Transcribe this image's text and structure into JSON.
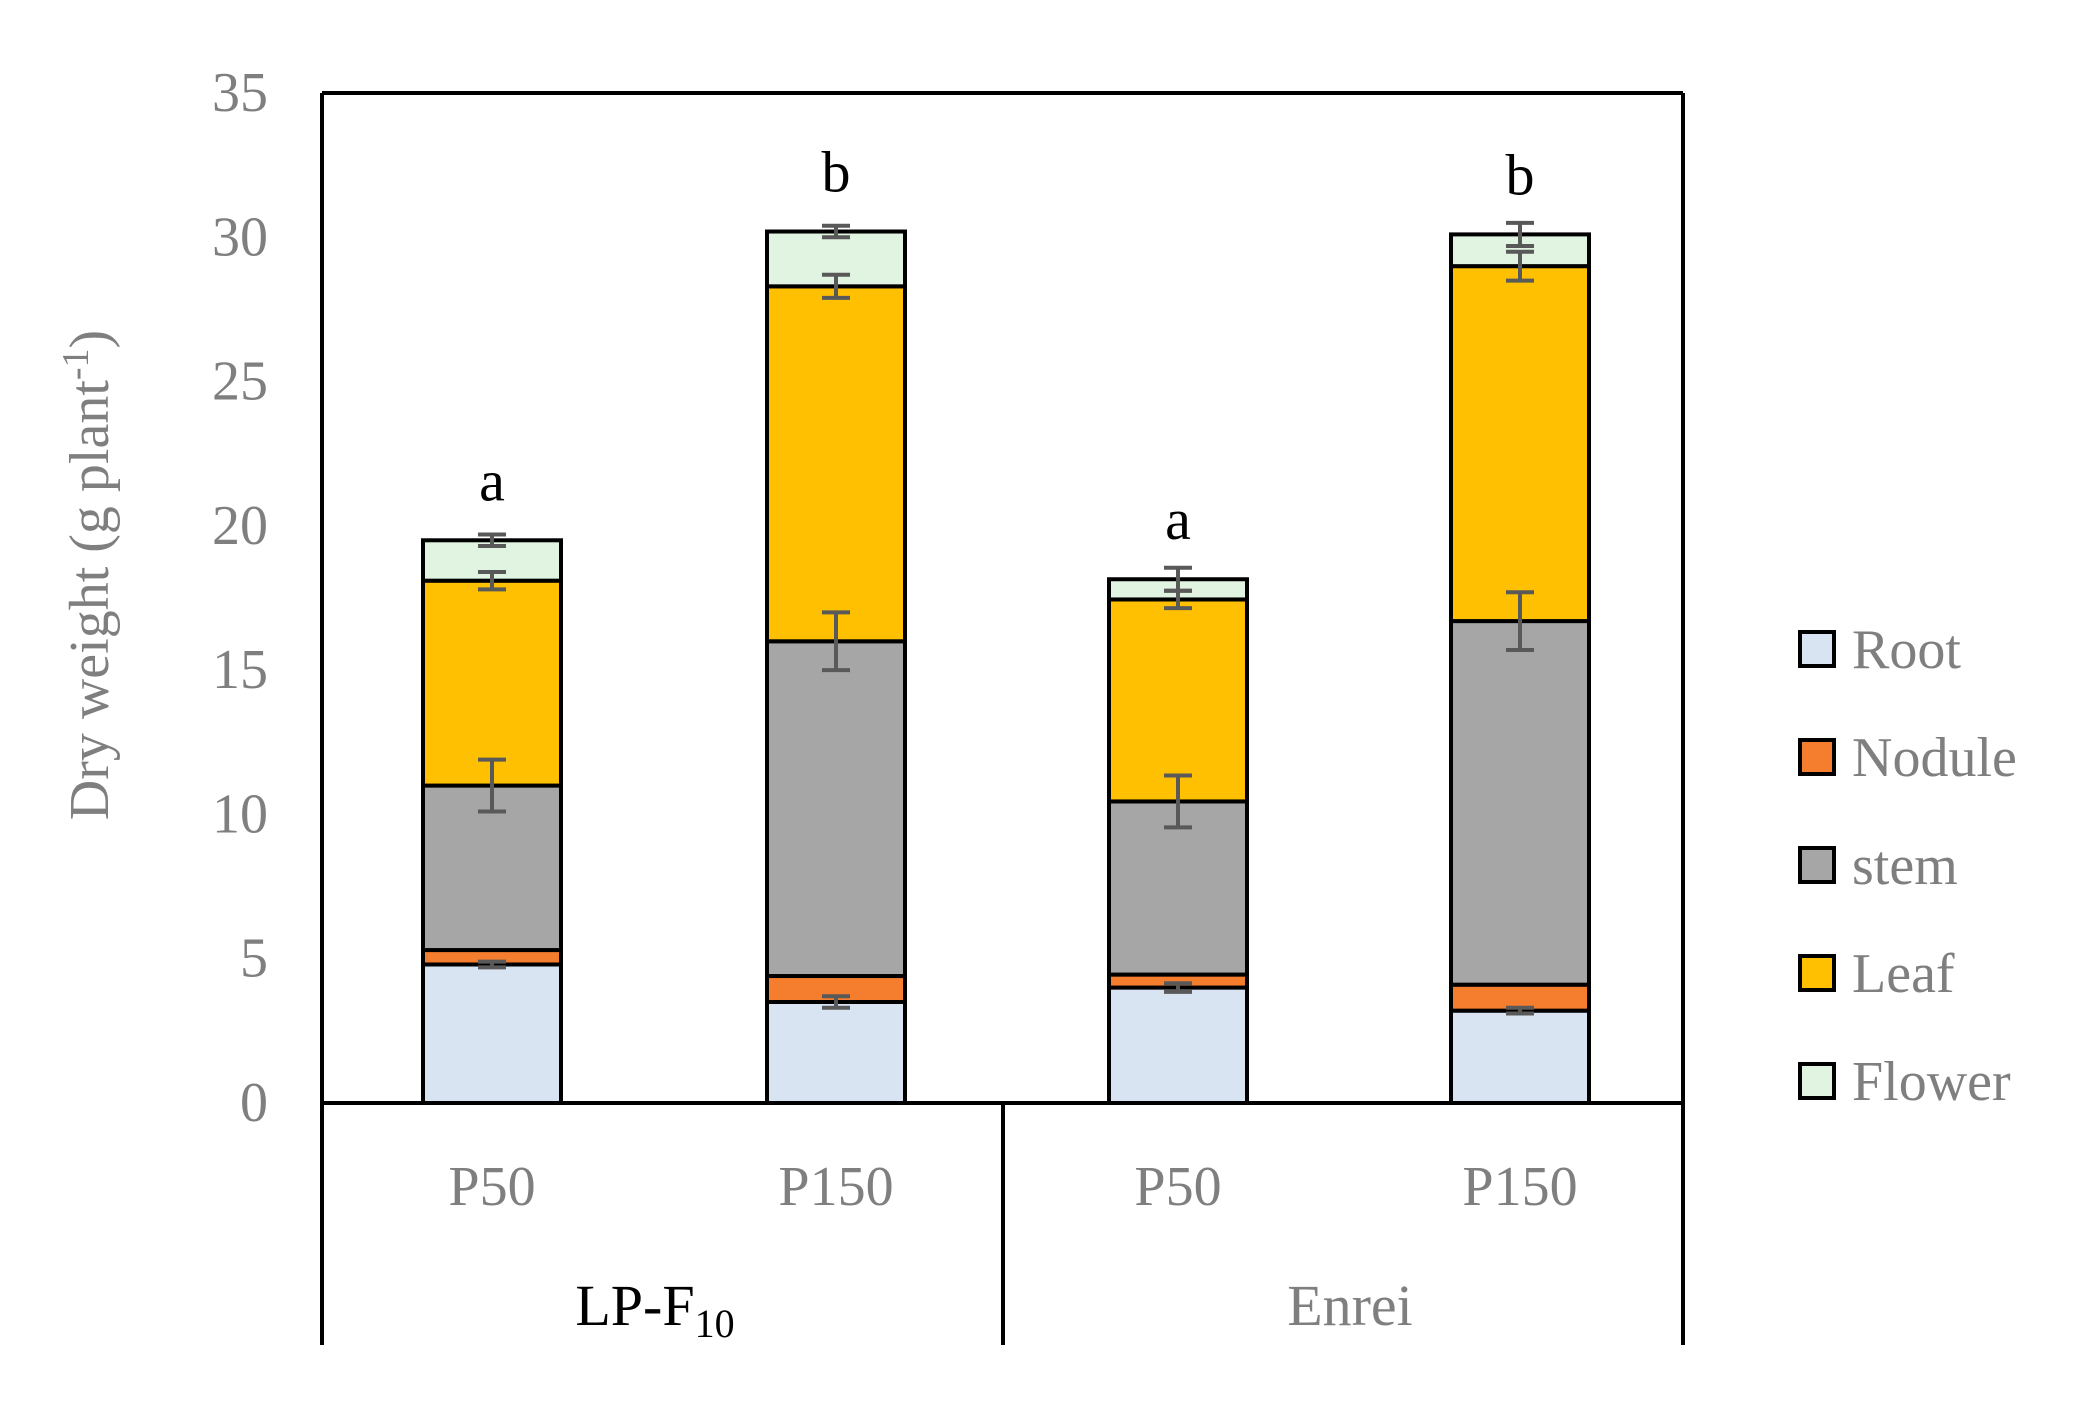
{
  "chart_data": {
    "type": "bar",
    "stacked": true,
    "ylabel": "Dry weight (g plant",
    "ylabel_sup": "-1",
    "ylabel_close": ")",
    "ylim": [
      0,
      35
    ],
    "yticks": [
      0,
      5,
      10,
      15,
      20,
      25,
      30,
      35
    ],
    "categories": [
      "P50",
      "P150",
      "P50",
      "P150"
    ],
    "groups": [
      {
        "label": "LP-F",
        "subscript": "10",
        "label_color": "#000000"
      },
      {
        "label": "Enrei",
        "subscript": "",
        "label_color": "#7f7f7f"
      }
    ],
    "series": [
      {
        "name": "Root",
        "color": "#d9e4f3",
        "values": [
          4.8,
          3.5,
          4.0,
          3.2
        ],
        "err": [
          0.1,
          0.2,
          0.15,
          0.1
        ]
      },
      {
        "name": "Nodule",
        "color": "#f47e2e",
        "values": [
          0.5,
          0.9,
          0.45,
          0.9
        ],
        "err": [
          0,
          0,
          0,
          0
        ]
      },
      {
        "name": "stem",
        "color": "#a6a6a6",
        "values": [
          5.7,
          11.6,
          6.0,
          12.6
        ],
        "err": [
          0.9,
          1.0,
          0.9,
          1.0
        ]
      },
      {
        "name": "Leaf",
        "color": "#fec000",
        "values": [
          7.1,
          12.3,
          7.0,
          12.3
        ],
        "err": [
          0.3,
          0.4,
          0.3,
          0.5
        ]
      },
      {
        "name": "Flower",
        "color": "#e1f3e1",
        "values": [
          1.4,
          1.9,
          0.7,
          1.1
        ],
        "err": [
          0.2,
          0.2,
          0.4,
          0.4
        ]
      }
    ],
    "significance": [
      "a",
      "b",
      "a",
      "b"
    ],
    "legend_position": "right"
  }
}
